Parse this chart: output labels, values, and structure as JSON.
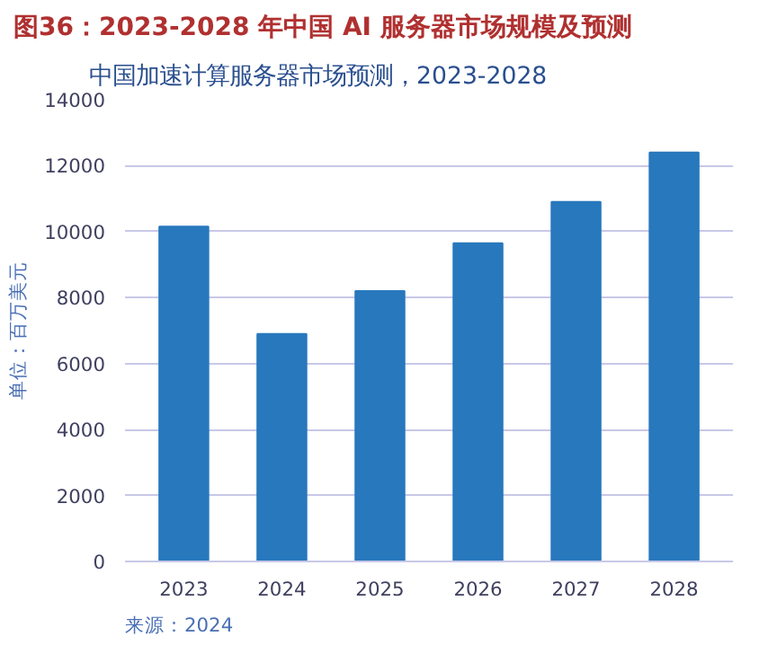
{
  "chart_data": {
    "type": "bar",
    "title": "图36：2023-2028 年中国 AI 服务器市场规模及预测",
    "subtitle": "中国加速计算服务器市场预测，2023-2028",
    "ylabel": "单位：百万美元",
    "categories": [
      "2023",
      "2024",
      "2025",
      "2026",
      "2027",
      "2028"
    ],
    "values": [
      10150,
      6900,
      8200,
      9650,
      10900,
      12400
    ],
    "color": "#2878bd",
    "ylim": [
      0,
      14000
    ],
    "yticks": [
      0,
      2000,
      4000,
      6000,
      8000,
      10000,
      12000,
      14000
    ],
    "grid": "y",
    "annotations": [
      "来源：2024"
    ]
  }
}
